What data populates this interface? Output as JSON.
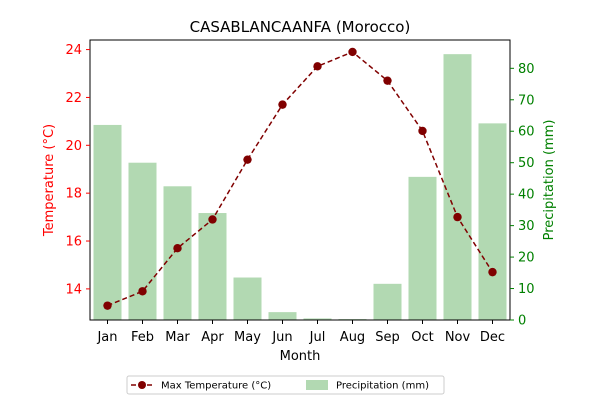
{
  "chart_data": {
    "type": "bar",
    "title": "CASABLANCAANFA (Morocco)",
    "xlabel": "Month",
    "categories": [
      "Jan",
      "Feb",
      "Mar",
      "Apr",
      "May",
      "Jun",
      "Jul",
      "Aug",
      "Sep",
      "Oct",
      "Nov",
      "Dec"
    ],
    "y_left": {
      "label": "Temperature (°C)",
      "ylim": [
        12.7,
        24.4
      ],
      "ticks": [
        14,
        16,
        18,
        20,
        22,
        24
      ],
      "color": "#ff0000"
    },
    "y_right": {
      "label": "Precipitation (mm)",
      "ylim": [
        0,
        89
      ],
      "ticks": [
        0,
        10,
        20,
        30,
        40,
        50,
        60,
        70,
        80
      ],
      "color": "#008000"
    },
    "series": [
      {
        "name": "Max Temperature (°C)",
        "type": "line",
        "axis": "left",
        "color": "#800000",
        "linestyle": "dashed",
        "marker": "circle",
        "values": [
          13.3,
          13.9,
          15.7,
          16.9,
          19.4,
          21.7,
          23.3,
          23.9,
          22.7,
          20.6,
          17.0,
          14.7
        ]
      },
      {
        "name": "Precipitation (mm)",
        "type": "bar",
        "axis": "right",
        "color": "#b2d9b2",
        "values": [
          62,
          50,
          42.5,
          34,
          13.5,
          2.5,
          0.5,
          0.3,
          11.5,
          45.5,
          84.5,
          62.5
        ]
      }
    ],
    "legend": {
      "placement": "bottom-center"
    },
    "grid": false
  }
}
